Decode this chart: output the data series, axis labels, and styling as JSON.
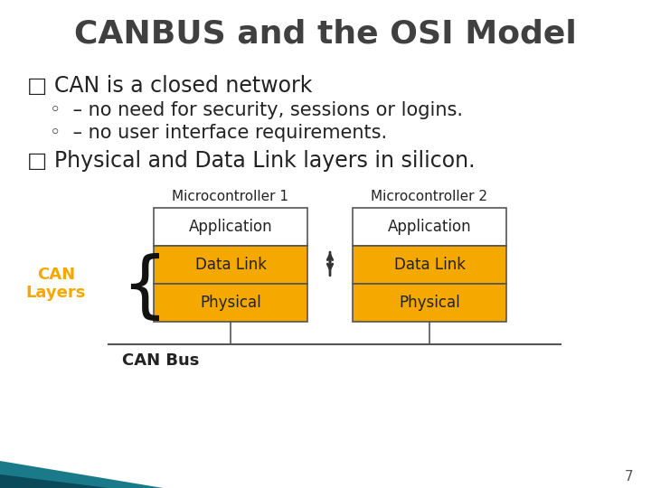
{
  "title": "CANBUS and the OSI Model",
  "title_fontsize": 26,
  "title_color": "#404040",
  "title_font": "Impact",
  "bg_color": "#ffffff",
  "bullet1": "□ CAN is a closed network",
  "sub1": "◦  – no need for security, sessions or logins.",
  "sub2": "◦  – no user interface requirements.",
  "bullet2": "□ Physical and Data Link layers in silicon.",
  "bullet_fontsize": 17,
  "sub_fontsize": 15,
  "can_layers_color": "#f5a800",
  "app_color": "#ffffff",
  "box_edge_color": "#555555",
  "can_layers_text_color": "#f5a800",
  "slide_number": "7",
  "footer_color1": "#1a7a8a",
  "footer_color2": "#0a4a5a"
}
